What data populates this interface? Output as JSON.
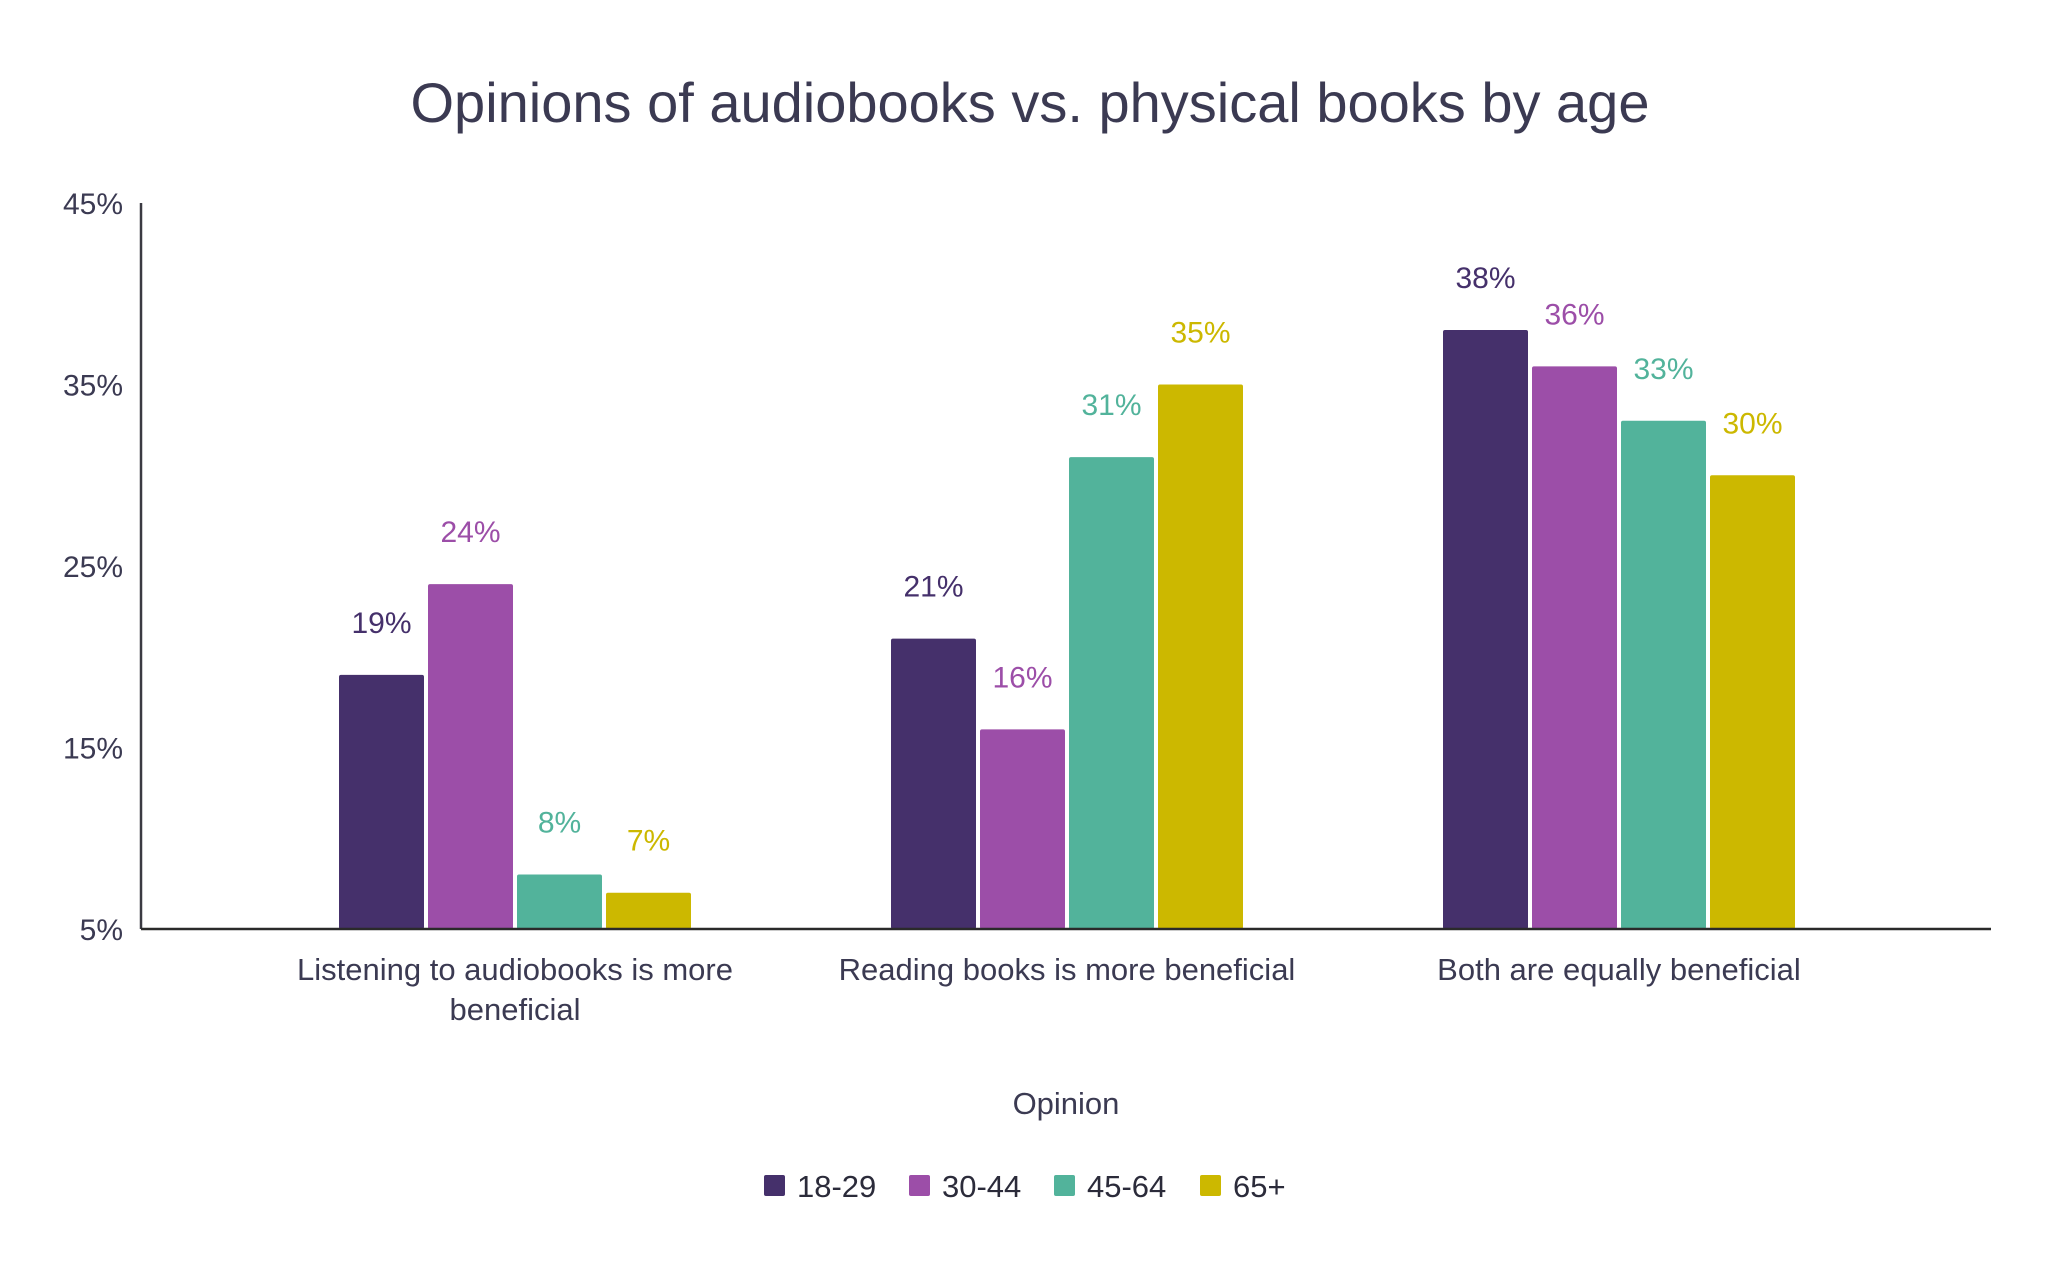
{
  "chart_data": {
    "type": "bar",
    "title": "Opinions of audiobooks vs. physical books by age",
    "xlabel": "Opinion",
    "ylabel": "",
    "ylim": [
      5,
      45
    ],
    "yticks": [
      5,
      15,
      25,
      35,
      45
    ],
    "ytick_labels": [
      "5%",
      "15%",
      "25%",
      "35%",
      "45%"
    ],
    "grid": false,
    "legend_position": "bottom",
    "categories": [
      [
        "Listening to audiobooks is more",
        "beneficial"
      ],
      [
        "Reading books is more beneficial"
      ],
      [
        "Both are equally beneficial"
      ]
    ],
    "series": [
      {
        "name": "18-29",
        "color": "#45306b",
        "values": [
          19,
          21,
          38
        ],
        "labels": [
          "19%",
          "21%",
          "38%"
        ]
      },
      {
        "name": "30-44",
        "color": "#9c4ea8",
        "values": [
          24,
          16,
          36
        ],
        "labels": [
          "24%",
          "16%",
          "36%"
        ]
      },
      {
        "name": "45-64",
        "color": "#52b39b",
        "values": [
          8,
          31,
          33
        ],
        "labels": [
          "8%",
          "31%",
          "33%"
        ]
      },
      {
        "name": "65+",
        "color": "#ccb800",
        "values": [
          7,
          35,
          30
        ],
        "labels": [
          "7%",
          "35%",
          "30%"
        ]
      }
    ]
  }
}
